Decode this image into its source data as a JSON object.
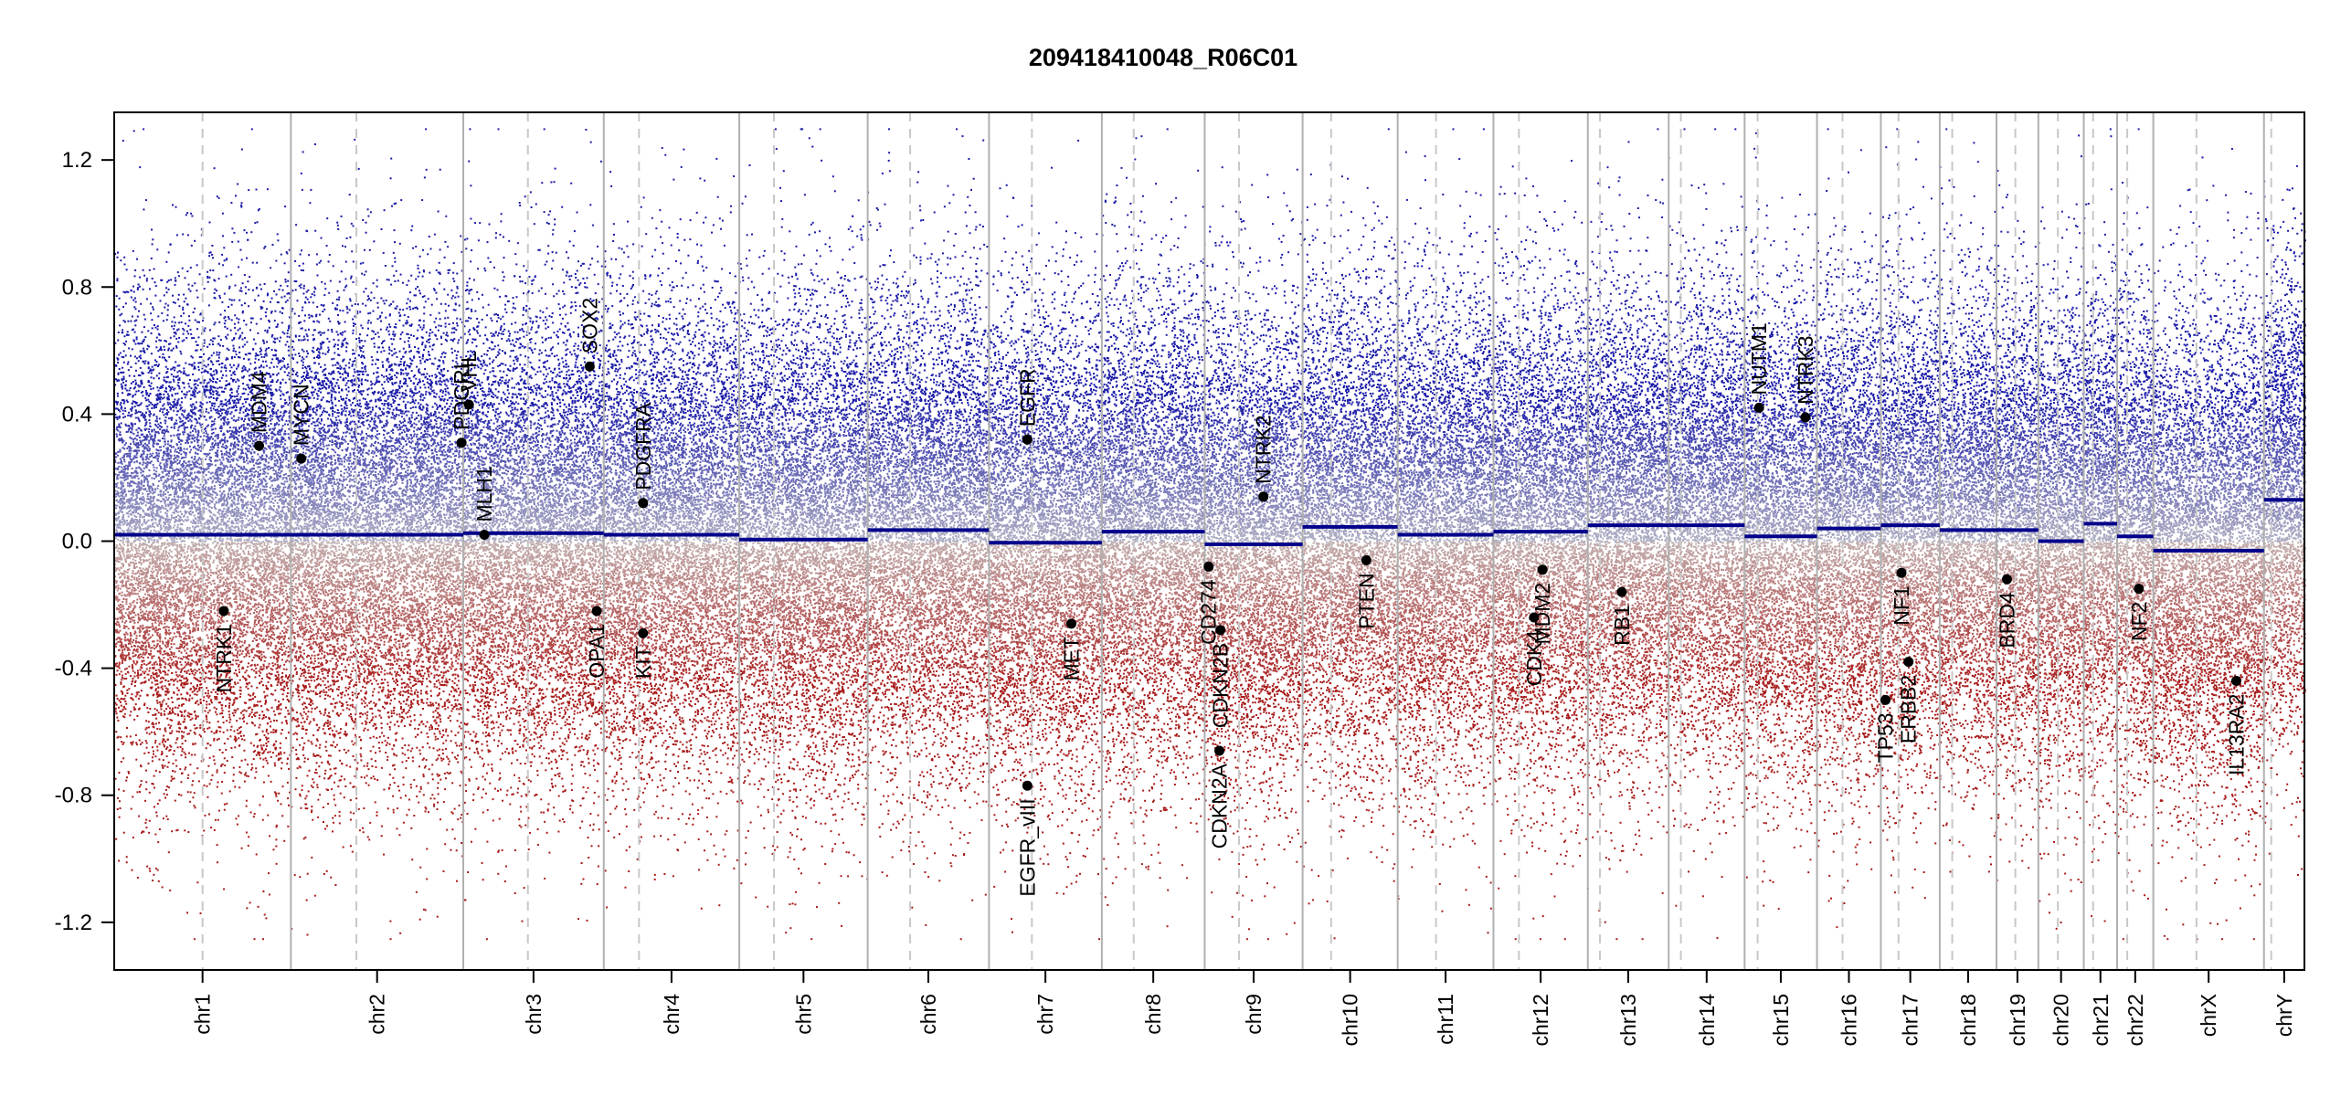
{
  "chart_data": {
    "type": "scatter",
    "title": "209418410048_R06C01",
    "xlabel": "",
    "ylabel": "",
    "ylim": [
      -1.35,
      1.35
    ],
    "y_ticks": [
      1.2,
      0.8,
      0.4,
      0.0,
      -0.4,
      -0.8,
      -1.2
    ],
    "y_tick_labels": [
      "1.2",
      "0.8",
      "0.4",
      "0.0",
      "-0.4",
      "-0.8",
      "-1.2"
    ],
    "grid": false,
    "legend": "none",
    "colors": {
      "gain": "#1a1aa8",
      "loss": "#a81a1a",
      "neutral": "#a0a0a0",
      "segment": "#00008b",
      "chrom_boundary": "#b0b0b0",
      "centromere": "#c8c8c8",
      "gene_marker": "#000000"
    },
    "chromosomes": [
      {
        "name": "chr1",
        "length": 249,
        "centromere": 0.5,
        "segment": 0.02
      },
      {
        "name": "chr2",
        "length": 243,
        "centromere": 0.38,
        "segment": 0.02
      },
      {
        "name": "chr3",
        "length": 198,
        "centromere": 0.46,
        "segment": 0.025
      },
      {
        "name": "chr4",
        "length": 191,
        "centromere": 0.26,
        "segment": 0.02
      },
      {
        "name": "chr5",
        "length": 181,
        "centromere": 0.27,
        "segment": 0.005
      },
      {
        "name": "chr6",
        "length": 171,
        "centromere": 0.35,
        "segment": 0.035
      },
      {
        "name": "chr7",
        "length": 159,
        "centromere": 0.38,
        "segment": -0.005
      },
      {
        "name": "chr8",
        "length": 145,
        "centromere": 0.31,
        "segment": 0.03
      },
      {
        "name": "chr9",
        "length": 138,
        "centromere": 0.35,
        "segment": -0.01
      },
      {
        "name": "chr10",
        "length": 134,
        "centromere": 0.3,
        "segment": 0.045
      },
      {
        "name": "chr11",
        "length": 135,
        "centromere": 0.4,
        "segment": 0.02
      },
      {
        "name": "chr12",
        "length": 133,
        "centromere": 0.27,
        "segment": 0.03
      },
      {
        "name": "chr13",
        "length": 114,
        "centromere": 0.15,
        "segment": 0.05
      },
      {
        "name": "chr14",
        "length": 107,
        "centromere": 0.16,
        "segment": 0.05
      },
      {
        "name": "chr15",
        "length": 102,
        "centromere": 0.18,
        "segment": 0.015
      },
      {
        "name": "chr16",
        "length": 90,
        "centromere": 0.4,
        "segment": 0.04
      },
      {
        "name": "chr17",
        "length": 83,
        "centromere": 0.3,
        "segment": 0.05
      },
      {
        "name": "chr18",
        "length": 80,
        "centromere": 0.22,
        "segment": 0.035
      },
      {
        "name": "chr19",
        "length": 59,
        "centromere": 0.45,
        "segment": 0.035
      },
      {
        "name": "chr20",
        "length": 64,
        "centromere": 0.43,
        "segment": 0.0
      },
      {
        "name": "chr21",
        "length": 47,
        "centromere": 0.28,
        "segment": 0.055
      },
      {
        "name": "chr22",
        "length": 51,
        "centromere": 0.28,
        "segment": 0.015
      },
      {
        "name": "chrX",
        "length": 156,
        "centromere": 0.39,
        "segment": -0.03
      },
      {
        "name": "chrY",
        "length": 57,
        "centromere": 0.18,
        "segment": 0.13
      }
    ],
    "genes": [
      {
        "label": "NTRK1",
        "chrom": "chr1",
        "pos": 0.62,
        "value": -0.22
      },
      {
        "label": "MDM4",
        "chrom": "chr1",
        "pos": 0.82,
        "value": 0.3
      },
      {
        "label": "MYCN",
        "chrom": "chr2",
        "pos": 0.06,
        "value": 0.26
      },
      {
        "label": "PDGRL",
        "chrom": "chr2",
        "pos": 0.99,
        "value": 0.31
      },
      {
        "label": "VHL",
        "chrom": "chr3",
        "pos": 0.04,
        "value": 0.43
      },
      {
        "label": "MLH1",
        "chrom": "chr3",
        "pos": 0.15,
        "value": 0.02
      },
      {
        "label": "SOX2",
        "chrom": "chr3",
        "pos": 0.9,
        "value": 0.55
      },
      {
        "label": "OPA1",
        "chrom": "chr3",
        "pos": 0.95,
        "value": -0.22
      },
      {
        "label": "PDGFRA",
        "chrom": "chr4",
        "pos": 0.29,
        "value": 0.12
      },
      {
        "label": "KIT",
        "chrom": "chr4",
        "pos": 0.29,
        "value": -0.29
      },
      {
        "label": "EGFR",
        "chrom": "chr7",
        "pos": 0.34,
        "value": 0.32
      },
      {
        "label": "EGFR_vIII",
        "chrom": "chr7",
        "pos": 0.34,
        "value": -0.77
      },
      {
        "label": "MET",
        "chrom": "chr7",
        "pos": 0.73,
        "value": -0.26
      },
      {
        "label": "CD274",
        "chrom": "chr9",
        "pos": 0.04,
        "value": -0.08
      },
      {
        "label": "CDKN2A",
        "chrom": "chr9",
        "pos": 0.15,
        "value": -0.66
      },
      {
        "label": "CDKN2B",
        "chrom": "chr9",
        "pos": 0.16,
        "value": -0.28
      },
      {
        "label": "NTRK2",
        "chrom": "chr9",
        "pos": 0.6,
        "value": 0.14
      },
      {
        "label": "PTEN",
        "chrom": "chr10",
        "pos": 0.67,
        "value": -0.06
      },
      {
        "label": "CDK4",
        "chrom": "chr12",
        "pos": 0.43,
        "value": -0.24
      },
      {
        "label": "MDM2",
        "chrom": "chr12",
        "pos": 0.52,
        "value": -0.09
      },
      {
        "label": "RB1",
        "chrom": "chr13",
        "pos": 0.42,
        "value": -0.16
      },
      {
        "label": "NUTM1",
        "chrom": "chr15",
        "pos": 0.2,
        "value": 0.42
      },
      {
        "label": "NTRK3",
        "chrom": "chr15",
        "pos": 0.84,
        "value": 0.39
      },
      {
        "label": "TP53",
        "chrom": "chr17",
        "pos": 0.08,
        "value": -0.5
      },
      {
        "label": "NF1",
        "chrom": "chr17",
        "pos": 0.35,
        "value": -0.1
      },
      {
        "label": "ERBB2",
        "chrom": "chr17",
        "pos": 0.47,
        "value": -0.38
      },
      {
        "label": "BRD4",
        "chrom": "chr19",
        "pos": 0.25,
        "value": -0.12
      },
      {
        "label": "NF2",
        "chrom": "chr22",
        "pos": 0.6,
        "value": -0.15
      },
      {
        "label": "IL13RA2",
        "chrom": "chrX",
        "pos": 0.75,
        "value": -0.44
      }
    ]
  }
}
